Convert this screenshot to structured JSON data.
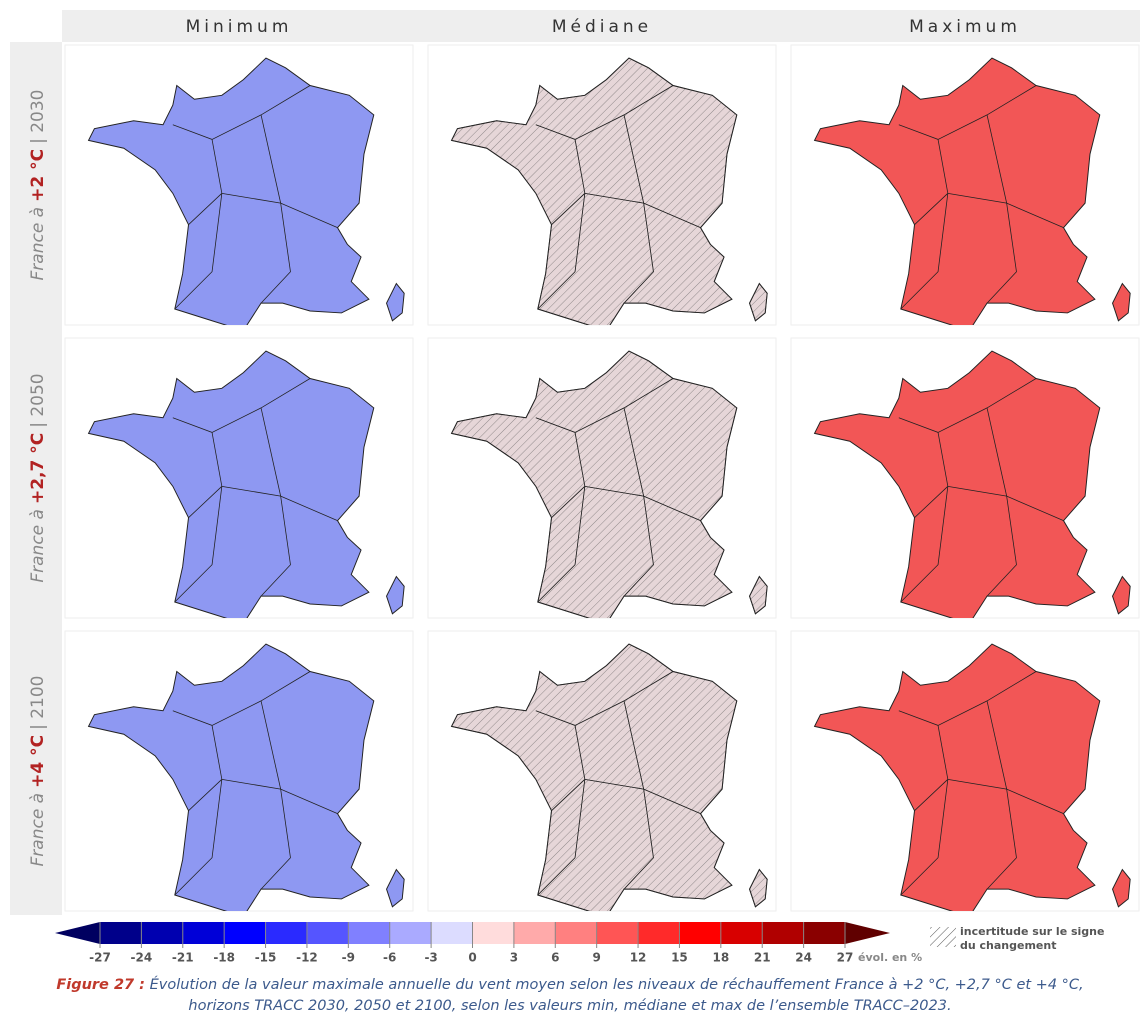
{
  "columns": [
    "Minimum",
    "Médiane",
    "Maximum"
  ],
  "rows": [
    {
      "prefix": "France à",
      "level": "+2 °C",
      "horizon": "| 2030"
    },
    {
      "prefix": "France à",
      "level": "+2,7 °C",
      "horizon": "| 2050"
    },
    {
      "prefix": "France à",
      "level": "+4 °C",
      "horizon": "| 2100"
    }
  ],
  "colorbar": {
    "ticks": [
      -27,
      -24,
      -21,
      -18,
      -15,
      -12,
      -9,
      -6,
      -3,
      0,
      3,
      6,
      9,
      12,
      15,
      18,
      21,
      24,
      27
    ],
    "unit": "évol. en %",
    "colors": [
      "#000060",
      "#00008a",
      "#0000b0",
      "#0000d8",
      "#0000ff",
      "#2a2aff",
      "#5555ff",
      "#8080ff",
      "#aaaaff",
      "#dcdcff",
      "#ffdcdc",
      "#ffaaaa",
      "#ff8080",
      "#ff5555",
      "#ff2a2a",
      "#ff0000",
      "#d80000",
      "#b00000",
      "#8a0000",
      "#600000"
    ]
  },
  "hatch_legend": [
    "incertitude sur le signe",
    "du changement"
  ],
  "caption": {
    "label": "Figure 27 :",
    "text": "Évolution de la valeur maximale annuelle du vent moyen selon les niveaux de réchauffement France à +2 °C, +2,7 °C et +4 °C, horizons TRACC 2030, 2050 et 2100, selon les valeurs min, médiane et max de l’ensemble TRACC–2023."
  }
}
